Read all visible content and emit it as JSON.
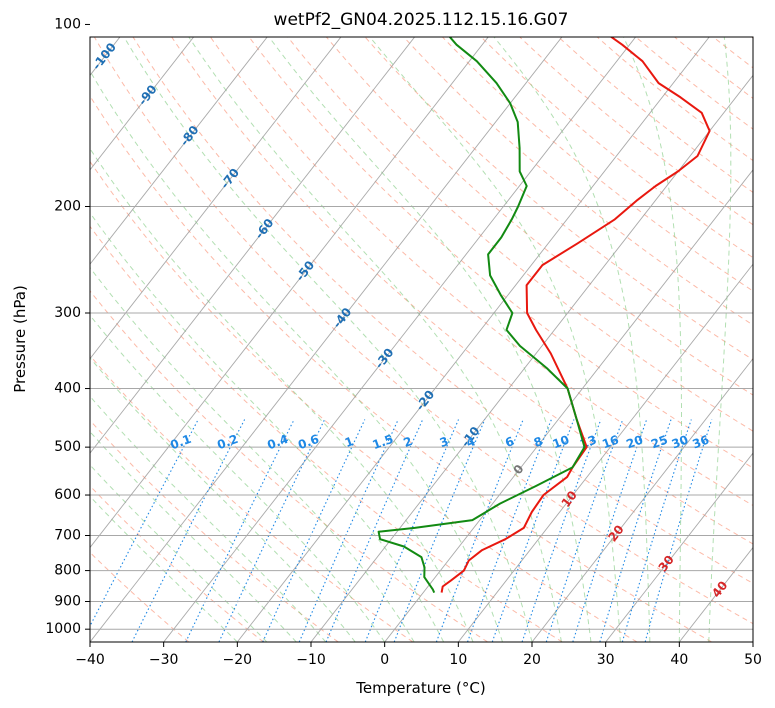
{
  "chart_data": {
    "type": "line",
    "title": "wetPf2_GN04.2025.112.15.16.G07",
    "xlabel": "Temperature (°C)",
    "ylabel": "Pressure (hPa)",
    "xlim": [
      -40,
      50
    ],
    "ylim": [
      1050,
      100
    ],
    "y_scale": "log",
    "grid": true,
    "x_ticks": [
      -40,
      -30,
      -20,
      -10,
      0,
      10,
      20,
      30,
      40,
      50
    ],
    "y_ticks": [
      100,
      200,
      300,
      400,
      500,
      600,
      700,
      800,
      900,
      1000
    ],
    "isotherm_labels": [
      "-100",
      "-90",
      "-80",
      "-70",
      "-60",
      "-50",
      "-40",
      "-30",
      "-20",
      "-10",
      "0",
      "10",
      "20",
      "30",
      "40"
    ],
    "mixing_ratio_labels": [
      "0.1",
      "0.2",
      "0.4",
      "0.6",
      "1",
      "1.5",
      "2",
      "3",
      "4",
      "6",
      "8",
      "10",
      "13",
      "16",
      "20",
      "25",
      "30",
      "36"
    ],
    "colors": {
      "temperature": "#e8180f",
      "dewpoint": "#128a12",
      "isotherm_label_cold": "#1f6fb4",
      "isotherm_label_zero": "#777777",
      "isotherm_label_warm": "#d62728",
      "mixing_ratio": "#1e88e5",
      "dry_adiabat": "#fa8c6e",
      "moist_adiabat": "#7fc97f",
      "skewed_isotherm": "#9a9a9a"
    },
    "series": [
      {
        "kind": "temperature",
        "points": [
          {
            "p": 870,
            "t": 2.5
          },
          {
            "p": 850,
            "t": 2.0
          },
          {
            "p": 830,
            "t": 2.5
          },
          {
            "p": 800,
            "t": 3.2
          },
          {
            "p": 770,
            "t": 2.8
          },
          {
            "p": 740,
            "t": 3.5
          },
          {
            "p": 710,
            "t": 5.5
          },
          {
            "p": 680,
            "t": 6.8
          },
          {
            "p": 640,
            "t": 6.2
          },
          {
            "p": 600,
            "t": 6.0
          },
          {
            "p": 560,
            "t": 7.3
          },
          {
            "p": 540,
            "t": 7.0
          },
          {
            "p": 500,
            "t": 6.8
          },
          {
            "p": 450,
            "t": 2.5
          },
          {
            "p": 400,
            "t": -2.0
          },
          {
            "p": 350,
            "t": -8.0
          },
          {
            "p": 320,
            "t": -12.5
          },
          {
            "p": 300,
            "t": -15.5
          },
          {
            "p": 270,
            "t": -18.5
          },
          {
            "p": 250,
            "t": -18.5
          },
          {
            "p": 230,
            "t": -16.0
          },
          {
            "p": 210,
            "t": -13.5
          },
          {
            "p": 195,
            "t": -12.5
          },
          {
            "p": 185,
            "t": -11.5
          },
          {
            "p": 175,
            "t": -10.0
          },
          {
            "p": 165,
            "t": -9.0
          },
          {
            "p": 150,
            "t": -10.0
          },
          {
            "p": 140,
            "t": -13.0
          },
          {
            "p": 132,
            "t": -17.5
          },
          {
            "p": 125,
            "t": -22.0
          },
          {
            "p": 115,
            "t": -26.5
          },
          {
            "p": 108,
            "t": -31.0
          },
          {
            "p": 100,
            "t": -37.0
          }
        ]
      },
      {
        "kind": "dewpoint",
        "points": [
          {
            "p": 870,
            "t": 1.5
          },
          {
            "p": 860,
            "t": 1.0
          },
          {
            "p": 820,
            "t": -1.5
          },
          {
            "p": 790,
            "t": -2.5
          },
          {
            "p": 760,
            "t": -4.0
          },
          {
            "p": 730,
            "t": -7.5
          },
          {
            "p": 710,
            "t": -11.5
          },
          {
            "p": 690,
            "t": -12.5
          },
          {
            "p": 680,
            "t": -8.0
          },
          {
            "p": 660,
            "t": -1.0
          },
          {
            "p": 620,
            "t": 1.0
          },
          {
            "p": 580,
            "t": 4.0
          },
          {
            "p": 540,
            "t": 7.0
          },
          {
            "p": 500,
            "t": 6.5
          },
          {
            "p": 450,
            "t": 2.5
          },
          {
            "p": 400,
            "t": -2.0
          },
          {
            "p": 370,
            "t": -7.0
          },
          {
            "p": 340,
            "t": -13.0
          },
          {
            "p": 320,
            "t": -16.5
          },
          {
            "p": 300,
            "t": -17.5
          },
          {
            "p": 280,
            "t": -21.0
          },
          {
            "p": 260,
            "t": -24.5
          },
          {
            "p": 240,
            "t": -27.0
          },
          {
            "p": 225,
            "t": -27.0
          },
          {
            "p": 210,
            "t": -27.5
          },
          {
            "p": 200,
            "t": -28.0
          },
          {
            "p": 185,
            "t": -29.0
          },
          {
            "p": 175,
            "t": -31.5
          },
          {
            "p": 160,
            "t": -34.0
          },
          {
            "p": 145,
            "t": -37.0
          },
          {
            "p": 135,
            "t": -40.0
          },
          {
            "p": 125,
            "t": -44.0
          },
          {
            "p": 115,
            "t": -49.0
          },
          {
            "p": 108,
            "t": -53.5
          },
          {
            "p": 100,
            "t": -58.0
          }
        ]
      }
    ]
  }
}
